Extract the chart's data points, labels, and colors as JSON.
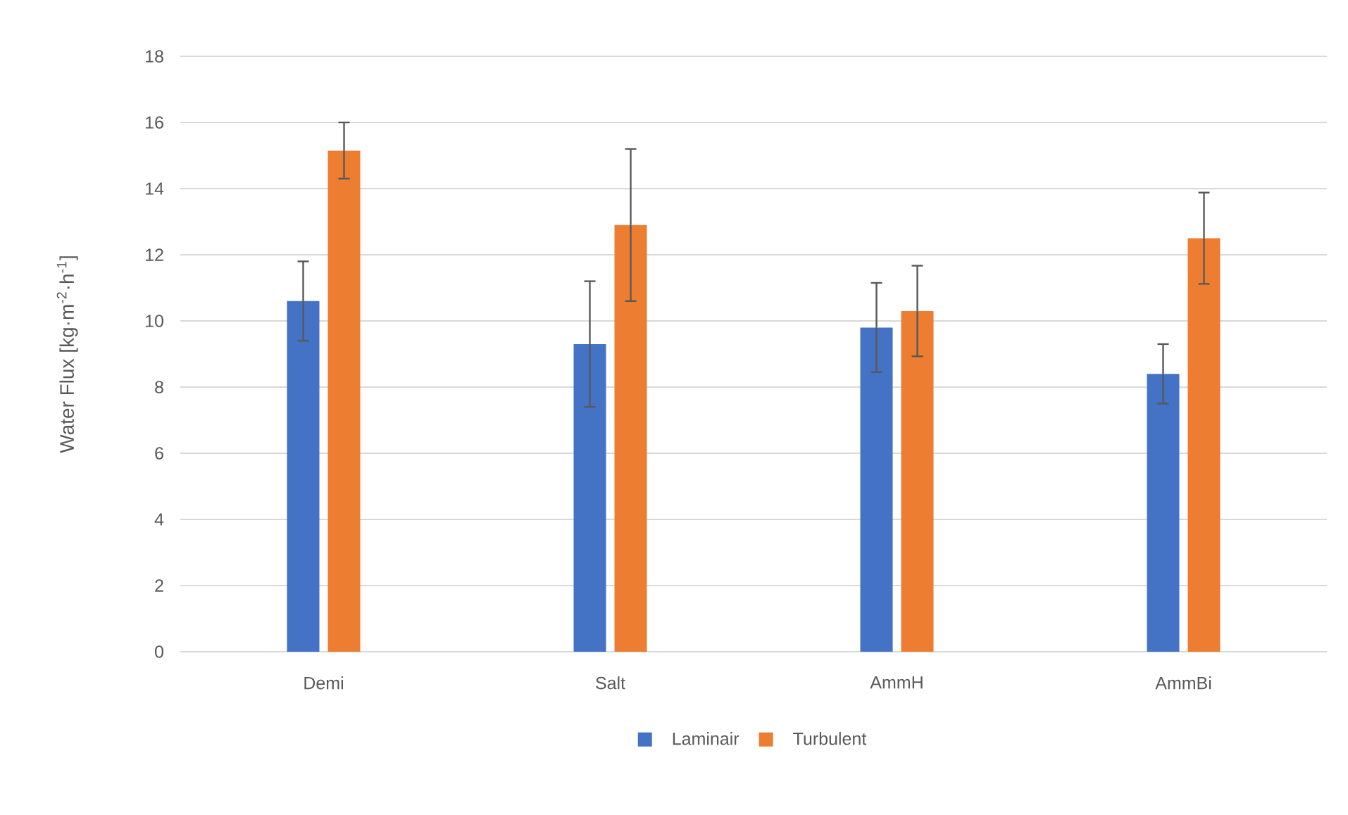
{
  "chart_data": {
    "type": "bar",
    "ylabel": "Water Flux [kg·m$^{-2}$·h$^{-1}$]",
    "categories": [
      "Demi",
      "Salt",
      "AmmH",
      "AmmBi"
    ],
    "series": [
      {
        "name": "Laminair",
        "color": "#4472c4",
        "values": [
          10.6,
          9.3,
          9.8,
          8.4
        ],
        "errors": [
          1.2,
          1.9,
          1.35,
          0.9
        ]
      },
      {
        "name": "Turbulent",
        "color": "#ed7d31",
        "values": [
          15.15,
          12.9,
          10.3,
          12.5
        ],
        "errors": [
          0.85,
          2.3,
          1.37,
          1.38
        ]
      }
    ],
    "ylim": [
      0,
      18
    ],
    "yticks": [
      0,
      2,
      4,
      6,
      8,
      10,
      12,
      14,
      16,
      18
    ],
    "grid": "y",
    "legend": "bottom"
  }
}
